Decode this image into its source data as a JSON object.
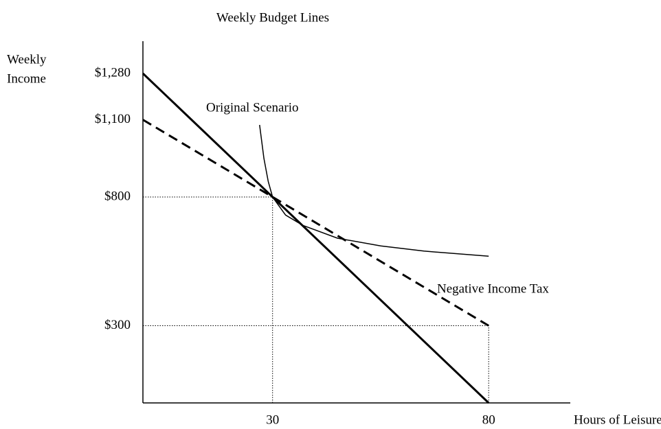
{
  "chart_data": {
    "type": "line",
    "title": "Weekly Budget Lines",
    "xlabel": "Hours of Leisure",
    "ylabel": [
      "Weekly",
      "Income"
    ],
    "xlim": [
      0,
      100
    ],
    "ylim": [
      0,
      1400
    ],
    "xticks": [
      30,
      80
    ],
    "yticks": [
      {
        "value": 1280,
        "label": "$1,280"
      },
      {
        "value": 1100,
        "label": "$1,100"
      },
      {
        "value": 800,
        "label": "$800"
      },
      {
        "value": 300,
        "label": "$300"
      }
    ],
    "guides": [
      {
        "x": 30,
        "y": 800
      },
      {
        "x": 80,
        "y": 300
      }
    ],
    "series": [
      {
        "name": "Original Scenario",
        "color": "#000000",
        "style": "solid",
        "x": [
          0,
          80
        ],
        "values": [
          1280,
          0
        ]
      },
      {
        "name": "Negative Income Tax",
        "color": "#000000",
        "style": "dashed",
        "x": [
          0,
          80
        ],
        "values": [
          1100,
          300
        ]
      },
      {
        "color": "#000000",
        "style": "thin",
        "x": [
          27,
          28,
          29,
          30,
          33,
          37,
          45,
          55,
          65,
          80
        ],
        "values": [
          1080,
          950,
          860,
          800,
          730,
          690,
          640,
          610,
          590,
          570
        ]
      }
    ]
  }
}
